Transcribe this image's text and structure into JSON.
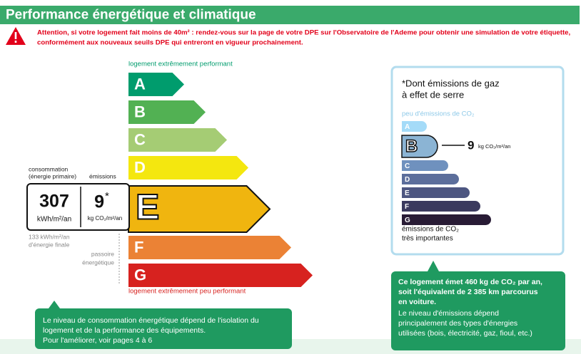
{
  "header": {
    "title": "Performance énergétique et climatique"
  },
  "warning": {
    "lines": [
      "Attention, si votre logement fait moins de 40m² : rendez-vous sur la page de votre DPE sur l'Observatoire de l'Ademe pour obtenir une simulation de votre étiquette,",
      "conformément aux nouveaux seuils DPE qui entreront en vigueur prochainement."
    ]
  },
  "energy_label": {
    "top_note": "logement extrêmement performant",
    "bottom_note": "logement extrêmement peu performant",
    "current": "E",
    "classes": [
      {
        "letter": "A",
        "color": "#009c6d"
      },
      {
        "letter": "B",
        "color": "#52b153"
      },
      {
        "letter": "C",
        "color": "#a5cc74"
      },
      {
        "letter": "D",
        "color": "#f4e70f"
      },
      {
        "letter": "E",
        "color": "#f0b50f"
      },
      {
        "letter": "F",
        "color": "#eb8235"
      },
      {
        "letter": "G",
        "color": "#d7221f"
      }
    ]
  },
  "consumption": {
    "caption_lines": [
      "consommation",
      "(énergie primaire)"
    ],
    "value": 307,
    "unit": "kWh/m²/an",
    "final_energy_lines": [
      "133 kWh/m²/an",
      "d'énergie finale"
    ]
  },
  "emissions": {
    "caption": "émissions",
    "value": 9,
    "mark": "*",
    "unit": "kg CO₂/m²/an"
  },
  "passoire_lines": [
    "passoire",
    "énergétique"
  ],
  "ghg_panel": {
    "title_lines": [
      "*Dont émissions de gaz",
      "à effet de serre"
    ],
    "top_note": "peu d'émissions de CO₂",
    "bottom_note_lines": [
      "émissions de CO₂",
      "très importantes"
    ],
    "current": "B",
    "classes": [
      {
        "letter": "A",
        "color": "#a4dbf8"
      },
      {
        "letter": "B",
        "color": "#8bb4d4"
      },
      {
        "letter": "C",
        "color": "#6f91be"
      },
      {
        "letter": "D",
        "color": "#5c6e9b"
      },
      {
        "letter": "E",
        "color": "#4d5681"
      },
      {
        "letter": "F",
        "color": "#3b3a5e"
      },
      {
        "letter": "G",
        "color": "#281b35"
      }
    ]
  },
  "callouts": {
    "consumption_lines": [
      "Le niveau de consommation énergétique dépend de l'isolation du",
      "logement et de la performance des équipements.",
      "Pour l'améliorer, voir pages 4 à 6"
    ],
    "emissions_bold_lines": [
      "Ce logement émet 460 kg de CO₂ par an,",
      "soit l'équivalent de 2 385 km parcourus",
      "en voiture."
    ],
    "emissions_lines": [
      "Le niveau d'émissions dépend",
      "principalement des types d'énergies",
      "utilisées (bois, électricité, gaz, fioul, etc.)"
    ]
  }
}
